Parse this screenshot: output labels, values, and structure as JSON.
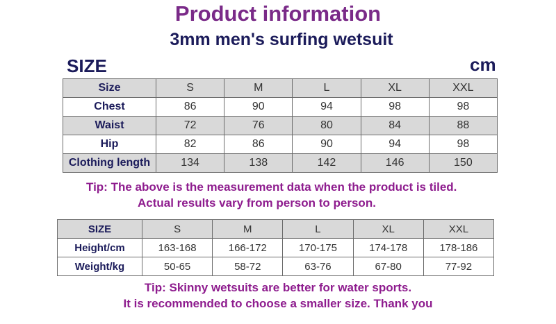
{
  "header": {
    "title": "Product information",
    "subtitle": "3mm men's surfing wetsuit",
    "size_label": "SIZE",
    "unit": "cm"
  },
  "table1": {
    "rows": [
      [
        "Size",
        "S",
        "M",
        "L",
        "XL",
        "XXL"
      ],
      [
        "Chest",
        "86",
        "90",
        "94",
        "98",
        "98"
      ],
      [
        "Waist",
        "72",
        "76",
        "80",
        "84",
        "88"
      ],
      [
        "Hip",
        "82",
        "86",
        "90",
        "94",
        "98"
      ],
      [
        "Clothing length",
        "134",
        "138",
        "142",
        "146",
        "150"
      ]
    ]
  },
  "tip1": [
    "Tip: The above is the measurement data when the product is tiled.",
    "Actual results vary from person to person."
  ],
  "table2": {
    "rows": [
      [
        "SIZE",
        "S",
        "M",
        "L",
        "XL",
        "XXL"
      ],
      [
        "Height/cm",
        "163-168",
        "166-172",
        "170-175",
        "174-178",
        "178-186"
      ],
      [
        "Weight/kg",
        "50-65",
        "58-72",
        "63-76",
        "67-80",
        "77-92"
      ]
    ]
  },
  "tip2": [
    "Tip: Skinny wetsuits are better for water sports.",
    "It is recommended to choose a smaller size. Thank you"
  ]
}
